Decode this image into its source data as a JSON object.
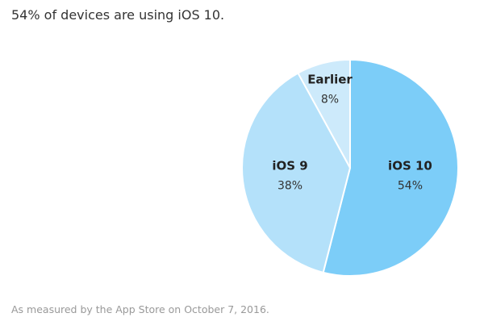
{
  "chart_data": {
    "type": "pie",
    "title": "54% of devices are using iOS 10.",
    "footnote": "As measured by the App Store on October 7, 2016.",
    "categories": [
      "iOS 10",
      "iOS 9",
      "Earlier"
    ],
    "values": [
      54,
      38,
      8
    ],
    "value_labels": [
      "54%",
      "38%",
      "8%"
    ],
    "colors": [
      "#7ccdf8",
      "#b4e1fa",
      "#cdeafb"
    ]
  }
}
